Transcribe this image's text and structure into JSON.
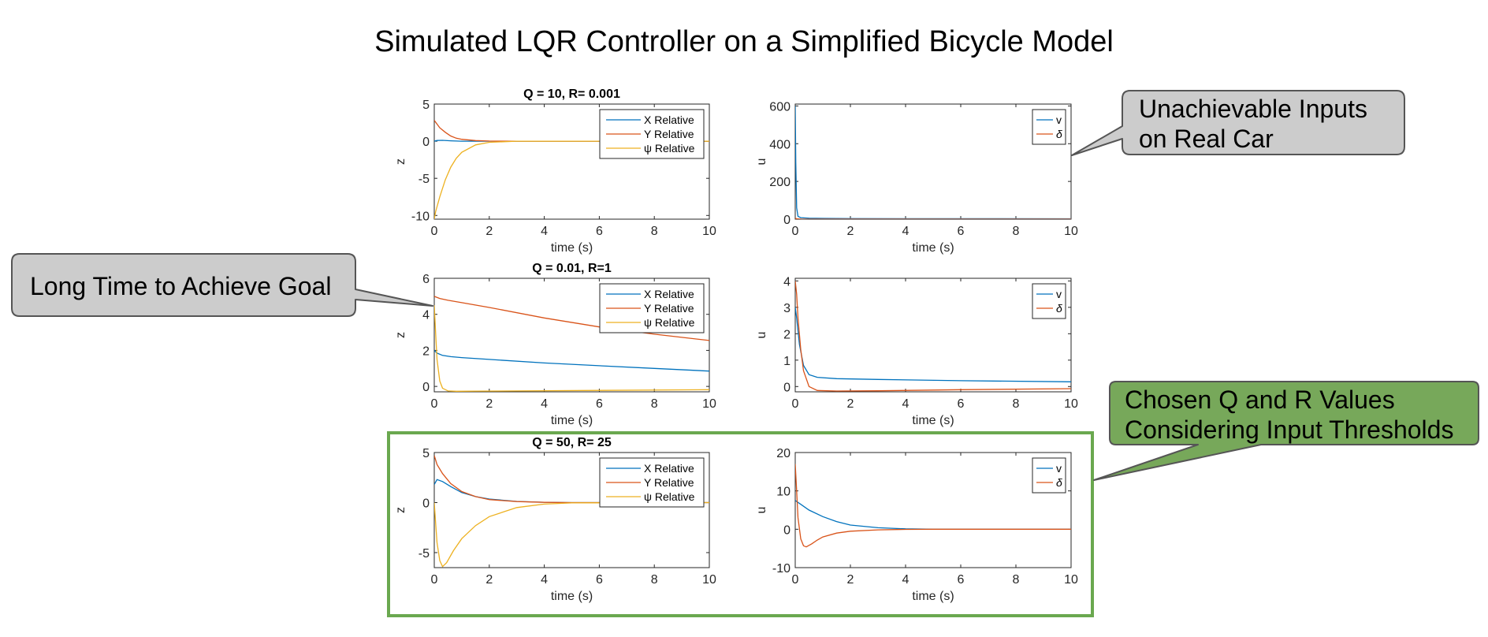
{
  "page": {
    "title": "Simulated LQR Controller on a Simplified Bicycle Model"
  },
  "colors": {
    "x": "#0072BD",
    "y": "#D95319",
    "psi": "#EDB120",
    "v": "#0072BD",
    "delta": "#D95319",
    "callout_gray": "#cccccc",
    "callout_green": "#77a85a",
    "highlight_box": "#6aa84f"
  },
  "callouts": {
    "top": {
      "lines": [
        "Unachievable Inputs",
        "on Real Car"
      ]
    },
    "middle": {
      "lines": [
        "Long Time to Achieve Goal"
      ]
    },
    "bottom": {
      "lines": [
        "Chosen Q and R Values",
        "Considering Input Thresholds"
      ]
    }
  },
  "chart_data": [
    {
      "type": "line",
      "title": "Q = 10, R= 0.001",
      "xlabel": "time (s)",
      "ylabel": "z",
      "xlim": [
        0,
        10
      ],
      "ylim": [
        -10.5,
        5
      ],
      "xticks": [
        0,
        2,
        4,
        6,
        8,
        10
      ],
      "yticks": [
        -10,
        -5,
        0,
        5
      ],
      "legend": "top-right",
      "series": [
        {
          "name": "X Relative",
          "colorKey": "x",
          "x": [
            0,
            0.1,
            0.3,
            0.6,
            1,
            2,
            10
          ],
          "y": [
            0,
            0.1,
            0.12,
            0.05,
            0,
            0,
            0
          ]
        },
        {
          "name": "Y Relative",
          "colorKey": "y",
          "x": [
            0,
            0.1,
            0.2,
            0.4,
            0.6,
            0.8,
            1,
            1.5,
            2,
            3,
            10
          ],
          "y": [
            2.8,
            2.3,
            1.8,
            1.2,
            0.7,
            0.4,
            0.25,
            0.08,
            0.02,
            0,
            0
          ]
        },
        {
          "name": "ψ Relative",
          "colorKey": "psi",
          "x": [
            0,
            0.05,
            0.2,
            0.4,
            0.6,
            0.8,
            1,
            1.5,
            2,
            3,
            10
          ],
          "y": [
            -10.5,
            -9.5,
            -7.5,
            -5.2,
            -3.5,
            -2.3,
            -1.5,
            -0.5,
            -0.15,
            0,
            0
          ]
        }
      ]
    },
    {
      "type": "line",
      "title": "",
      "xlabel": "time (s)",
      "ylabel": "u",
      "xlim": [
        0,
        10
      ],
      "ylim": [
        0,
        610
      ],
      "xticks": [
        0,
        2,
        4,
        6,
        8,
        10
      ],
      "yticks": [
        0,
        200,
        400,
        600
      ],
      "legend": "top-right",
      "series": [
        {
          "name": "v",
          "colorKey": "v",
          "x": [
            0,
            0.02,
            0.05,
            0.1,
            0.2,
            0.5,
            1,
            2,
            10
          ],
          "y": [
            600,
            300,
            60,
            15,
            8,
            5,
            4,
            3,
            2
          ]
        },
        {
          "name": "δ",
          "colorKey": "delta",
          "x": [
            0,
            0.05,
            0.2,
            1,
            10
          ],
          "y": [
            5,
            2,
            0.5,
            0,
            0
          ]
        }
      ]
    },
    {
      "type": "line",
      "title": "Q = 0.01, R=1",
      "xlabel": "time (s)",
      "ylabel": "z",
      "xlim": [
        0,
        10
      ],
      "ylim": [
        -0.3,
        6
      ],
      "xticks": [
        0,
        2,
        4,
        6,
        8,
        10
      ],
      "yticks": [
        0,
        2,
        4,
        6
      ],
      "legend": "top-right",
      "series": [
        {
          "name": "X Relative",
          "colorKey": "x",
          "x": [
            0,
            0.1,
            0.3,
            0.6,
            1,
            2,
            4,
            6,
            8,
            10
          ],
          "y": [
            2.0,
            1.85,
            1.72,
            1.65,
            1.6,
            1.5,
            1.3,
            1.15,
            1.0,
            0.85
          ]
        },
        {
          "name": "Y Relative",
          "colorKey": "y",
          "x": [
            0,
            0.2,
            0.5,
            1,
            2,
            4,
            6,
            8,
            10
          ],
          "y": [
            5.0,
            4.88,
            4.78,
            4.65,
            4.38,
            3.8,
            3.3,
            2.9,
            2.55
          ]
        },
        {
          "name": "ψ Relative",
          "colorKey": "psi",
          "x": [
            0,
            0.05,
            0.1,
            0.2,
            0.3,
            0.5,
            0.8,
            1.5,
            3,
            6,
            10
          ],
          "y": [
            4.5,
            3.0,
            1.5,
            0.3,
            -0.1,
            -0.25,
            -0.27,
            -0.26,
            -0.25,
            -0.22,
            -0.18
          ]
        }
      ]
    },
    {
      "type": "line",
      "title": "",
      "xlabel": "time (s)",
      "ylabel": "u",
      "xlim": [
        0,
        10
      ],
      "ylim": [
        -0.2,
        4.1
      ],
      "xticks": [
        0,
        2,
        4,
        6,
        8,
        10
      ],
      "yticks": [
        0,
        1,
        2,
        3,
        4
      ],
      "legend": "top-right",
      "series": [
        {
          "name": "v",
          "colorKey": "v",
          "x": [
            0,
            0.05,
            0.15,
            0.3,
            0.5,
            0.8,
            1.5,
            3,
            6,
            10
          ],
          "y": [
            3.0,
            2.6,
            1.6,
            0.8,
            0.45,
            0.35,
            0.3,
            0.27,
            0.22,
            0.18
          ]
        },
        {
          "name": "δ",
          "colorKey": "delta",
          "x": [
            0,
            0.05,
            0.1,
            0.2,
            0.3,
            0.5,
            0.8,
            1.5,
            3,
            6,
            10
          ],
          "y": [
            4.0,
            3.5,
            2.6,
            1.4,
            0.6,
            0.0,
            -0.15,
            -0.17,
            -0.16,
            -0.12,
            -0.08
          ]
        }
      ]
    },
    {
      "type": "line",
      "title": "Q = 50, R= 25",
      "xlabel": "time (s)",
      "ylabel": "z",
      "xlim": [
        0,
        10
      ],
      "ylim": [
        -6.5,
        5
      ],
      "xticks": [
        0,
        2,
        4,
        6,
        8,
        10
      ],
      "yticks": [
        -5,
        0,
        5
      ],
      "legend": "top-right",
      "series": [
        {
          "name": "X Relative",
          "colorKey": "x",
          "x": [
            0,
            0.1,
            0.3,
            0.6,
            1,
            1.5,
            2,
            3,
            4,
            5,
            10
          ],
          "y": [
            1.8,
            2.3,
            2.1,
            1.6,
            1.0,
            0.6,
            0.35,
            0.12,
            0.03,
            0,
            0
          ]
        },
        {
          "name": "Y Relative",
          "colorKey": "y",
          "x": [
            0,
            0.1,
            0.3,
            0.6,
            1,
            1.5,
            2,
            3,
            4,
            5,
            10
          ],
          "y": [
            4.7,
            3.8,
            2.9,
            1.9,
            1.1,
            0.6,
            0.3,
            0.1,
            0.02,
            0,
            0
          ]
        },
        {
          "name": "ψ Relative",
          "colorKey": "psi",
          "x": [
            0,
            0.05,
            0.1,
            0.2,
            0.3,
            0.45,
            0.7,
            1,
            1.5,
            2,
            3,
            4,
            5,
            10
          ],
          "y": [
            0,
            -2,
            -4,
            -5.8,
            -6.4,
            -6.0,
            -4.8,
            -3.6,
            -2.3,
            -1.4,
            -0.5,
            -0.15,
            -0.03,
            0
          ]
        }
      ]
    },
    {
      "type": "line",
      "title": "",
      "xlabel": "time (s)",
      "ylabel": "u",
      "xlim": [
        0,
        10
      ],
      "ylim": [
        -10,
        20
      ],
      "xticks": [
        0,
        2,
        4,
        6,
        8,
        10
      ],
      "yticks": [
        -10,
        0,
        10,
        20
      ],
      "legend": "top-right",
      "series": [
        {
          "name": "v",
          "colorKey": "v",
          "x": [
            0,
            0.2,
            0.5,
            1,
            1.5,
            2,
            3,
            4,
            5,
            10
          ],
          "y": [
            7.5,
            6.5,
            5.0,
            3.3,
            2.0,
            1.1,
            0.4,
            0.1,
            0,
            0
          ]
        },
        {
          "name": "δ",
          "colorKey": "delta",
          "x": [
            0,
            0.05,
            0.1,
            0.2,
            0.3,
            0.4,
            0.6,
            0.8,
            1,
            1.5,
            2,
            3,
            4,
            5,
            10
          ],
          "y": [
            17,
            10,
            3,
            -2.5,
            -4.3,
            -4.6,
            -3.8,
            -2.8,
            -2.0,
            -1.0,
            -0.5,
            -0.15,
            -0.03,
            0,
            0
          ]
        }
      ]
    }
  ]
}
